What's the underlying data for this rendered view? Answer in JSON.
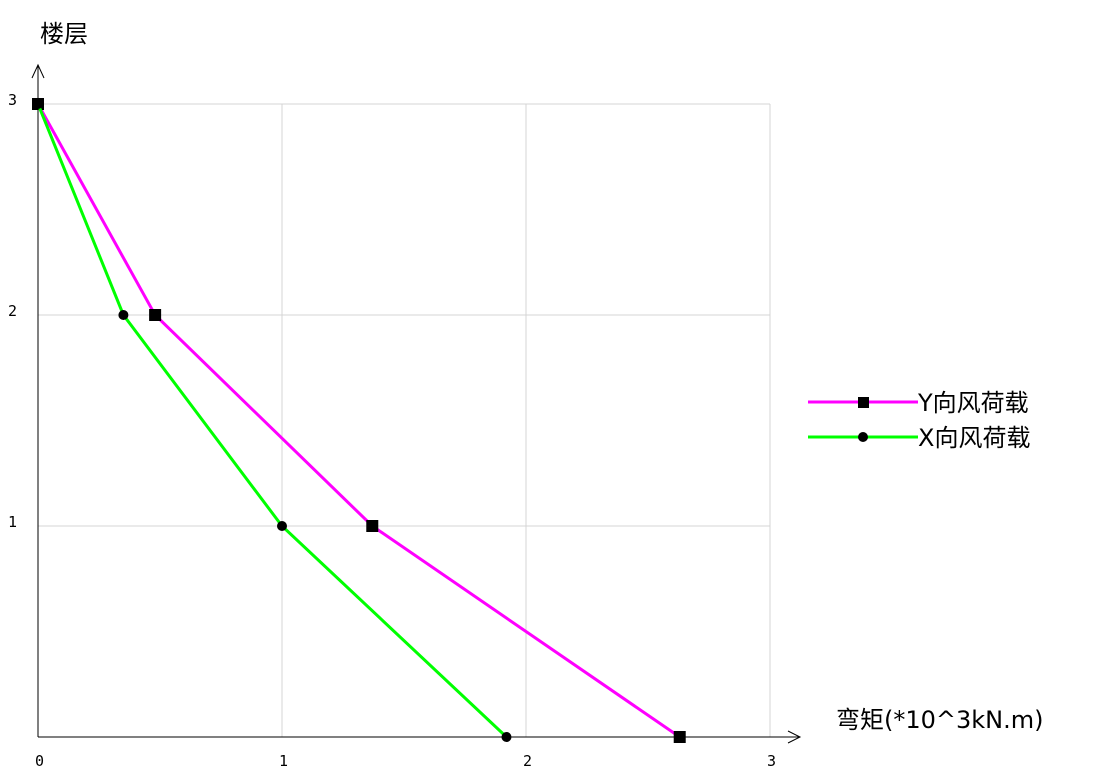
{
  "chart_data": {
    "type": "line",
    "title": "",
    "xlabel": "弯矩(*10^3kN.m)",
    "ylabel": "楼层",
    "xlim": [
      0,
      3
    ],
    "ylim": [
      0,
      3
    ],
    "xticks": [
      "0",
      "1",
      "2",
      "3"
    ],
    "yticks": [
      "1",
      "2",
      "3"
    ],
    "grid": true,
    "legend_position": "right",
    "series": [
      {
        "name": "Y向风荷载",
        "color": "#ff00ff",
        "marker": "square",
        "points": [
          [
            0,
            3
          ],
          [
            0.48,
            2
          ],
          [
            1.37,
            1
          ],
          [
            2.63,
            0
          ]
        ]
      },
      {
        "name": "X向风荷载",
        "color": "#00ff00",
        "marker": "circle",
        "points": [
          [
            0,
            3
          ],
          [
            0.35,
            2
          ],
          [
            1.0,
            1
          ],
          [
            1.92,
            0
          ]
        ]
      }
    ]
  }
}
